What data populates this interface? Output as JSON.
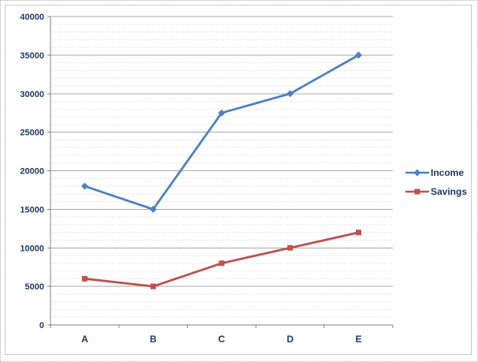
{
  "chart_data": {
    "type": "line",
    "title": "",
    "xlabel": "",
    "ylabel": "",
    "categories": [
      "A",
      "B",
      "C",
      "D",
      "E"
    ],
    "series": [
      {
        "name": "Income",
        "color": "#4F81BD",
        "marker": "diamond",
        "values": [
          18000,
          15000,
          27500,
          30000,
          35000
        ]
      },
      {
        "name": "Savings",
        "color": "#C0504D",
        "marker": "square",
        "values": [
          6000,
          5000,
          8000,
          10000,
          12000
        ]
      }
    ],
    "ylim": [
      0,
      40000
    ],
    "ytick_step": 5000,
    "yminor_step": 1000,
    "ytick_labels": [
      "0",
      "5000",
      "10000",
      "15000",
      "20000",
      "25000",
      "30000",
      "35000",
      "40000"
    ],
    "grid": "horizontal, major and minor lines on",
    "legend_position": "right-center"
  },
  "colors": {
    "income_line": "#4F81BD",
    "savings_line": "#C0504D",
    "label_text": "#1F3864",
    "axis_line": "#808080",
    "major_gridline": "#A8A8A8",
    "minor_gridline": "#D6D6D6",
    "chart_border": "#C8C8C8",
    "outer_border": "#ABABAB",
    "background": "#FFFFFF"
  }
}
